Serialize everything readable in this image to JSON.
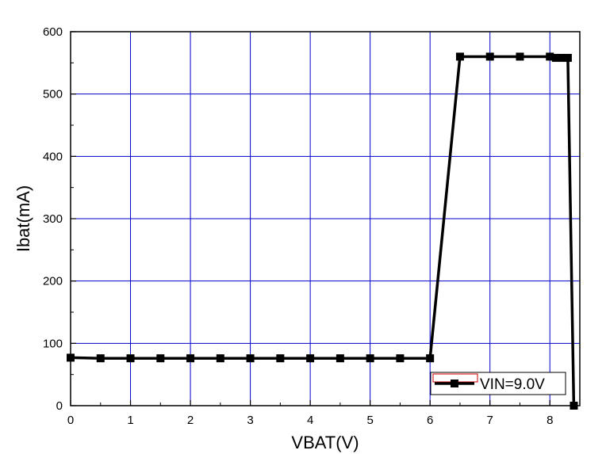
{
  "chart_data": {
    "type": "line",
    "title": "",
    "xlabel": "VBAT(V)",
    "ylabel": "Ibat(mA)",
    "xlim": [
      0,
      8.5
    ],
    "ylim": [
      0,
      600
    ],
    "x_ticks": [
      0,
      1,
      2,
      3,
      4,
      5,
      6,
      7,
      8
    ],
    "y_ticks": [
      0,
      100,
      200,
      300,
      400,
      500,
      600
    ],
    "grid": true,
    "grid_color": "#0000cc",
    "legend_position": "bottom-right",
    "series": [
      {
        "name": "VIN=9.0V",
        "color": "#000000",
        "marker": "square",
        "x": [
          0,
          0.5,
          1,
          1.5,
          2,
          2.5,
          3,
          3.5,
          4,
          4.5,
          5,
          5.5,
          6,
          6.5,
          7,
          7.5,
          8,
          8.1,
          8.2,
          8.3,
          8.4
        ],
        "y": [
          77,
          76,
          76,
          76,
          76,
          76,
          76,
          76,
          76,
          76,
          76,
          76,
          76,
          560,
          560,
          560,
          560,
          558,
          558,
          558,
          0
        ]
      }
    ]
  }
}
